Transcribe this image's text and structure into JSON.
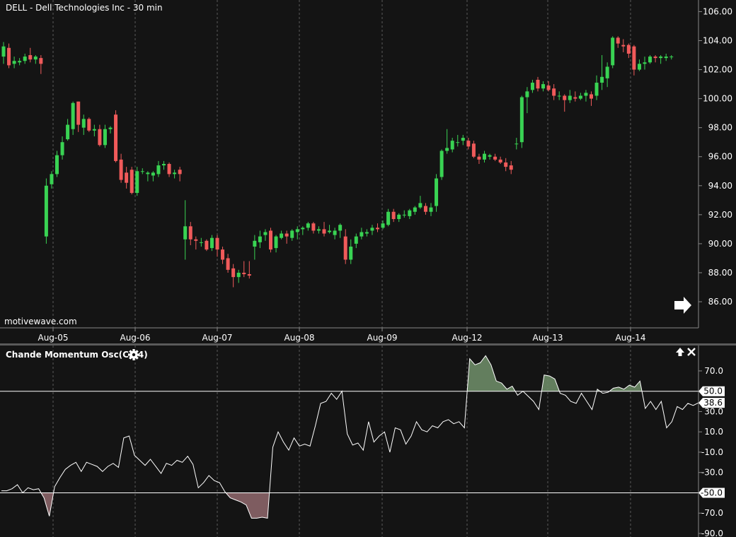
{
  "chart_data": [
    {
      "type": "candlestick",
      "title": "DELL - Dell Technologies Inc - 30 min",
      "watermark": "motivewave.com",
      "ylim": [
        84.2,
        106.8
      ],
      "y_ticks": [
        "86.00",
        "88.00",
        "90.00",
        "92.00",
        "94.00",
        "96.00",
        "98.00",
        "100.00",
        "102.00",
        "104.00",
        "106.00"
      ],
      "x_ticks": [
        "Aug-05",
        "Aug-06",
        "Aug-07",
        "Aug-08",
        "Aug-09",
        "Aug-12",
        "Aug-13",
        "Aug-14"
      ],
      "colors": {
        "up": "#39d353",
        "down": "#f05a5a"
      },
      "candles": [
        {
          "o": 102.9,
          "h": 103.9,
          "l": 102.4,
          "c": 103.6
        },
        {
          "o": 103.5,
          "h": 103.8,
          "l": 102.1,
          "c": 102.3
        },
        {
          "o": 102.4,
          "h": 102.9,
          "l": 102.1,
          "c": 102.6
        },
        {
          "o": 102.5,
          "h": 102.8,
          "l": 102.3,
          "c": 102.6
        },
        {
          "o": 102.6,
          "h": 103.1,
          "l": 102.4,
          "c": 102.9
        },
        {
          "o": 103.0,
          "h": 103.5,
          "l": 102.5,
          "c": 102.7
        },
        {
          "o": 102.7,
          "h": 103.0,
          "l": 102.4,
          "c": 102.9
        },
        {
          "o": 102.8,
          "h": 103.0,
          "l": 101.7,
          "c": 102.4
        },
        {
          "o": 90.5,
          "h": 94.5,
          "l": 90.0,
          "c": 94.0
        },
        {
          "o": 94.1,
          "h": 95.0,
          "l": 93.8,
          "c": 94.8
        },
        {
          "o": 94.8,
          "h": 96.4,
          "l": 94.6,
          "c": 96.1
        },
        {
          "o": 96.1,
          "h": 97.4,
          "l": 95.8,
          "c": 97.0
        },
        {
          "o": 97.2,
          "h": 98.6,
          "l": 97.1,
          "c": 98.2
        },
        {
          "o": 97.9,
          "h": 99.8,
          "l": 97.5,
          "c": 99.7
        },
        {
          "o": 99.8,
          "h": 99.8,
          "l": 97.7,
          "c": 98.2
        },
        {
          "o": 98.0,
          "h": 98.9,
          "l": 97.5,
          "c": 98.6
        },
        {
          "o": 98.6,
          "h": 98.7,
          "l": 97.7,
          "c": 97.8
        },
        {
          "o": 97.8,
          "h": 98.2,
          "l": 97.4,
          "c": 97.9
        },
        {
          "o": 97.9,
          "h": 98.2,
          "l": 96.7,
          "c": 96.8
        },
        {
          "o": 96.8,
          "h": 98.2,
          "l": 96.6,
          "c": 97.9
        },
        {
          "o": 97.9,
          "h": 98.1,
          "l": 97.6,
          "c": 98.0
        },
        {
          "o": 98.9,
          "h": 99.2,
          "l": 95.6,
          "c": 95.7
        },
        {
          "o": 95.8,
          "h": 96.2,
          "l": 94.2,
          "c": 94.4
        },
        {
          "o": 94.9,
          "h": 95.3,
          "l": 93.8,
          "c": 94.2
        },
        {
          "o": 95.1,
          "h": 95.3,
          "l": 93.4,
          "c": 93.5
        },
        {
          "o": 93.5,
          "h": 95.3,
          "l": 93.3,
          "c": 95.0
        },
        {
          "o": 95.0,
          "h": 95.2,
          "l": 94.8,
          "c": 95.0
        },
        {
          "o": 94.8,
          "h": 95.0,
          "l": 94.3,
          "c": 94.9
        },
        {
          "o": 94.7,
          "h": 95.0,
          "l": 94.3,
          "c": 94.9
        },
        {
          "o": 94.8,
          "h": 95.7,
          "l": 94.6,
          "c": 95.4
        },
        {
          "o": 95.4,
          "h": 95.7,
          "l": 95.1,
          "c": 95.5
        },
        {
          "o": 95.5,
          "h": 95.6,
          "l": 94.6,
          "c": 94.8
        },
        {
          "o": 94.8,
          "h": 95.1,
          "l": 94.5,
          "c": 94.9
        },
        {
          "o": 95.1,
          "h": 95.3,
          "l": 94.3,
          "c": 94.8
        },
        {
          "o": 90.3,
          "h": 93.0,
          "l": 88.9,
          "c": 91.2
        },
        {
          "o": 91.2,
          "h": 91.5,
          "l": 89.9,
          "c": 90.3
        },
        {
          "o": 90.3,
          "h": 90.5,
          "l": 89.6,
          "c": 90.2
        },
        {
          "o": 90.1,
          "h": 90.4,
          "l": 89.8,
          "c": 90.1
        },
        {
          "o": 90.2,
          "h": 90.3,
          "l": 89.5,
          "c": 89.6
        },
        {
          "o": 89.7,
          "h": 90.6,
          "l": 89.5,
          "c": 90.4
        },
        {
          "o": 90.4,
          "h": 90.6,
          "l": 89.1,
          "c": 89.6
        },
        {
          "o": 89.6,
          "h": 89.8,
          "l": 88.6,
          "c": 88.9
        },
        {
          "o": 89.0,
          "h": 89.3,
          "l": 88.0,
          "c": 88.2
        },
        {
          "o": 88.3,
          "h": 88.6,
          "l": 87.0,
          "c": 87.7
        },
        {
          "o": 87.7,
          "h": 88.2,
          "l": 87.3,
          "c": 88.0
        },
        {
          "o": 88.0,
          "h": 88.8,
          "l": 87.7,
          "c": 87.9
        },
        {
          "o": 87.9,
          "h": 88.8,
          "l": 87.6,
          "c": 87.8
        },
        {
          "o": 89.8,
          "h": 90.6,
          "l": 88.9,
          "c": 90.2
        },
        {
          "o": 90.1,
          "h": 90.9,
          "l": 89.7,
          "c": 90.5
        },
        {
          "o": 90.6,
          "h": 91.0,
          "l": 90.2,
          "c": 90.8
        },
        {
          "o": 90.9,
          "h": 91.1,
          "l": 89.4,
          "c": 89.6
        },
        {
          "o": 89.7,
          "h": 90.6,
          "l": 89.4,
          "c": 90.5
        },
        {
          "o": 90.4,
          "h": 90.9,
          "l": 90.3,
          "c": 90.7
        },
        {
          "o": 90.7,
          "h": 90.9,
          "l": 90.0,
          "c": 90.5
        },
        {
          "o": 90.4,
          "h": 91.0,
          "l": 90.2,
          "c": 90.9
        },
        {
          "o": 90.8,
          "h": 91.2,
          "l": 90.3,
          "c": 91.0
        },
        {
          "o": 91.0,
          "h": 91.2,
          "l": 90.6,
          "c": 91.1
        },
        {
          "o": 91.1,
          "h": 91.5,
          "l": 90.9,
          "c": 91.4
        },
        {
          "o": 91.4,
          "h": 91.5,
          "l": 90.7,
          "c": 90.9
        },
        {
          "o": 90.9,
          "h": 91.2,
          "l": 90.7,
          "c": 91.0
        },
        {
          "o": 91.0,
          "h": 91.5,
          "l": 90.5,
          "c": 90.7
        },
        {
          "o": 90.8,
          "h": 91.3,
          "l": 90.7,
          "c": 90.9
        },
        {
          "o": 90.6,
          "h": 91.1,
          "l": 90.3,
          "c": 90.9
        },
        {
          "o": 90.9,
          "h": 91.4,
          "l": 90.4,
          "c": 91.3
        },
        {
          "o": 90.5,
          "h": 91.0,
          "l": 88.6,
          "c": 88.9
        },
        {
          "o": 88.9,
          "h": 90.3,
          "l": 88.6,
          "c": 89.8
        },
        {
          "o": 90.0,
          "h": 90.7,
          "l": 89.7,
          "c": 90.5
        },
        {
          "o": 90.5,
          "h": 91.1,
          "l": 90.3,
          "c": 90.8
        },
        {
          "o": 90.7,
          "h": 91.0,
          "l": 90.5,
          "c": 90.8
        },
        {
          "o": 90.9,
          "h": 91.3,
          "l": 90.6,
          "c": 91.1
        },
        {
          "o": 91.1,
          "h": 91.4,
          "l": 90.8,
          "c": 91.0
        },
        {
          "o": 91.1,
          "h": 91.6,
          "l": 91.0,
          "c": 91.4
        },
        {
          "o": 91.3,
          "h": 92.4,
          "l": 91.2,
          "c": 92.2
        },
        {
          "o": 92.2,
          "h": 92.4,
          "l": 91.5,
          "c": 91.7
        },
        {
          "o": 91.7,
          "h": 92.1,
          "l": 91.5,
          "c": 92.0
        },
        {
          "o": 92.0,
          "h": 92.3,
          "l": 91.8,
          "c": 92.0
        },
        {
          "o": 91.9,
          "h": 92.4,
          "l": 91.7,
          "c": 92.3
        },
        {
          "o": 92.2,
          "h": 92.6,
          "l": 92.0,
          "c": 92.5
        },
        {
          "o": 92.5,
          "h": 93.3,
          "l": 92.4,
          "c": 92.8
        },
        {
          "o": 92.6,
          "h": 92.8,
          "l": 92.0,
          "c": 92.2
        },
        {
          "o": 92.2,
          "h": 92.8,
          "l": 91.9,
          "c": 92.5
        },
        {
          "o": 92.6,
          "h": 94.8,
          "l": 92.2,
          "c": 94.5
        },
        {
          "o": 94.6,
          "h": 96.5,
          "l": 94.4,
          "c": 96.4
        },
        {
          "o": 96.4,
          "h": 97.9,
          "l": 96.2,
          "c": 96.6
        },
        {
          "o": 96.5,
          "h": 97.3,
          "l": 96.3,
          "c": 97.1
        },
        {
          "o": 97.0,
          "h": 97.5,
          "l": 96.7,
          "c": 97.0
        },
        {
          "o": 97.1,
          "h": 97.5,
          "l": 96.8,
          "c": 97.3
        },
        {
          "o": 97.1,
          "h": 97.3,
          "l": 96.5,
          "c": 96.7
        },
        {
          "o": 96.9,
          "h": 97.1,
          "l": 95.9,
          "c": 96.0
        },
        {
          "o": 96.0,
          "h": 96.2,
          "l": 95.5,
          "c": 95.8
        },
        {
          "o": 95.8,
          "h": 96.4,
          "l": 95.6,
          "c": 96.2
        },
        {
          "o": 96.0,
          "h": 96.2,
          "l": 95.8,
          "c": 96.1
        },
        {
          "o": 96.0,
          "h": 96.2,
          "l": 95.7,
          "c": 95.8
        },
        {
          "o": 95.8,
          "h": 96.0,
          "l": 95.5,
          "c": 95.6
        },
        {
          "o": 95.6,
          "h": 95.9,
          "l": 95.0,
          "c": 95.3
        },
        {
          "o": 95.4,
          "h": 95.7,
          "l": 94.8,
          "c": 95.1
        },
        {
          "o": 96.9,
          "h": 97.3,
          "l": 96.5,
          "c": 96.9
        },
        {
          "o": 97.0,
          "h": 100.2,
          "l": 96.6,
          "c": 100.1
        },
        {
          "o": 100.1,
          "h": 100.8,
          "l": 99.0,
          "c": 100.5
        },
        {
          "o": 100.6,
          "h": 101.3,
          "l": 100.4,
          "c": 101.1
        },
        {
          "o": 101.3,
          "h": 101.5,
          "l": 100.5,
          "c": 100.7
        },
        {
          "o": 100.7,
          "h": 101.2,
          "l": 100.5,
          "c": 101.0
        },
        {
          "o": 100.9,
          "h": 101.2,
          "l": 100.5,
          "c": 100.6
        },
        {
          "o": 100.7,
          "h": 101.0,
          "l": 99.9,
          "c": 100.2
        },
        {
          "o": 100.2,
          "h": 100.5,
          "l": 99.9,
          "c": 100.2
        },
        {
          "o": 100.2,
          "h": 100.3,
          "l": 99.1,
          "c": 99.9
        },
        {
          "o": 99.9,
          "h": 100.6,
          "l": 99.7,
          "c": 100.2
        },
        {
          "o": 100.1,
          "h": 100.5,
          "l": 99.8,
          "c": 100.0
        },
        {
          "o": 100.0,
          "h": 100.4,
          "l": 99.9,
          "c": 100.2
        },
        {
          "o": 100.2,
          "h": 100.6,
          "l": 99.8,
          "c": 100.4
        },
        {
          "o": 100.3,
          "h": 100.5,
          "l": 99.5,
          "c": 100.0
        },
        {
          "o": 100.2,
          "h": 101.6,
          "l": 99.9,
          "c": 101.1
        },
        {
          "o": 101.1,
          "h": 103.0,
          "l": 100.6,
          "c": 101.5
        },
        {
          "o": 101.4,
          "h": 102.5,
          "l": 100.8,
          "c": 102.2
        },
        {
          "o": 102.3,
          "h": 104.3,
          "l": 102.1,
          "c": 104.2
        },
        {
          "o": 104.2,
          "h": 104.3,
          "l": 103.5,
          "c": 103.8
        },
        {
          "o": 103.7,
          "h": 104.1,
          "l": 103.2,
          "c": 103.6
        },
        {
          "o": 103.7,
          "h": 103.8,
          "l": 102.8,
          "c": 103.1
        },
        {
          "o": 103.6,
          "h": 103.7,
          "l": 101.6,
          "c": 102.0
        },
        {
          "o": 102.0,
          "h": 102.7,
          "l": 101.9,
          "c": 102.4
        },
        {
          "o": 102.4,
          "h": 102.9,
          "l": 102.0,
          "c": 102.5
        },
        {
          "o": 102.5,
          "h": 103.0,
          "l": 102.4,
          "c": 102.9
        },
        {
          "o": 102.9,
          "h": 103.0,
          "l": 102.5,
          "c": 102.8
        },
        {
          "o": 102.8,
          "h": 103.0,
          "l": 102.4,
          "c": 102.9
        },
        {
          "o": 102.8,
          "h": 103.1,
          "l": 102.6,
          "c": 102.9
        },
        {
          "o": 102.9,
          "h": 103.0,
          "l": 102.7,
          "c": 102.9
        }
      ]
    },
    {
      "type": "line",
      "title": "Chande Momentum Osc(C,14)",
      "ylim": [
        -93.5,
        95
      ],
      "y_ticks": [
        "70.0",
        "30.0",
        "10.0",
        "-10.0",
        "-30.0",
        "-70.0",
        "-90.0"
      ],
      "upper_level": 50.0,
      "lower_level": -50.0,
      "upper_label": "50.0",
      "lower_label": "-50.0",
      "current_value_label": "38.6",
      "colors": {
        "line": "#ffffff",
        "fill_above": "#6b8a66",
        "fill_below": "#8a6468"
      },
      "values": [
        -48,
        -48,
        -46,
        -42,
        -50,
        -45,
        -47,
        -46,
        -55,
        -73,
        -44,
        -35,
        -27,
        -23,
        -20,
        -29,
        -20,
        -22,
        -24,
        -29,
        -24,
        -21,
        -25,
        4,
        6,
        -13,
        -18,
        -23,
        -17,
        -24,
        -31,
        -21,
        -23,
        -18,
        -20,
        -14,
        -22,
        -45,
        -40,
        -33,
        -38,
        -40,
        -49,
        -55,
        -57,
        -59,
        -62,
        -75,
        -75,
        -74,
        -75,
        -5,
        10,
        0,
        -8,
        4,
        -4,
        -2,
        -4,
        16,
        38,
        40,
        48,
        42,
        50,
        8,
        -3,
        -1,
        -8,
        20,
        0,
        6,
        10,
        -10,
        14,
        12,
        -2,
        6,
        20,
        12,
        10,
        16,
        14,
        20,
        22,
        18,
        20,
        14,
        82,
        76,
        78,
        85,
        76,
        60,
        58,
        52,
        55,
        46,
        50,
        45,
        40,
        32,
        66,
        65,
        62,
        48,
        46,
        40,
        38,
        48,
        40,
        32,
        52,
        48,
        49,
        53,
        54,
        52,
        56,
        54,
        60,
        33,
        40,
        32,
        40,
        14,
        20,
        35,
        32,
        38,
        36,
        38.6
      ]
    }
  ],
  "header": {
    "collapse_icon": "arrow-up-icon",
    "close_icon": "close-icon",
    "settings_icon": "gear-icon",
    "scroll_icon": "arrow-right-icon"
  }
}
